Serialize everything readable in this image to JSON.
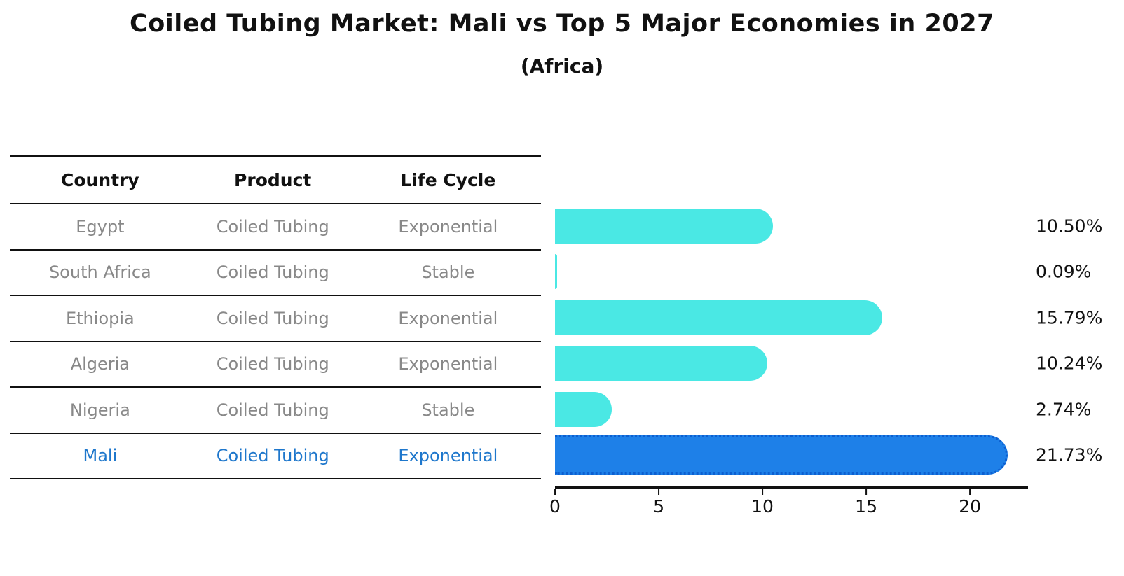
{
  "title": "Coiled Tubing Market: Mali vs Top 5 Major Economies in 2027",
  "subtitle": "(Africa)",
  "table": {
    "headers": [
      "Country",
      "Product",
      "Life Cycle"
    ],
    "rows": [
      {
        "country": "Egypt",
        "product": "Coiled Tubing",
        "life_cycle": "Exponential"
      },
      {
        "country": "South Africa",
        "product": "Coiled Tubing",
        "life_cycle": "Stable"
      },
      {
        "country": "Ethiopia",
        "product": "Coiled Tubing",
        "life_cycle": "Exponential"
      },
      {
        "country": "Algeria",
        "product": "Coiled Tubing",
        "life_cycle": "Exponential"
      },
      {
        "country": "Nigeria",
        "product": "Coiled Tubing",
        "life_cycle": "Stable"
      },
      {
        "country": "Mali",
        "product": "Coiled Tubing",
        "life_cycle": "Exponential"
      }
    ],
    "highlight_row": "Mali"
  },
  "chart_data": {
    "type": "bar",
    "orientation": "horizontal",
    "title": "Coiled Tubing Market: Mali vs Top 5 Major Economies in 2027",
    "subtitle": "(Africa)",
    "categories": [
      "Egypt",
      "South Africa",
      "Ethiopia",
      "Algeria",
      "Nigeria",
      "Mali"
    ],
    "values": [
      10.5,
      0.09,
      15.79,
      10.24,
      2.74,
      21.73
    ],
    "value_labels": [
      "10.50%",
      "0.09%",
      "15.79%",
      "10.24%",
      "2.74%",
      "21.73%"
    ],
    "xlabel": "",
    "ylabel": "",
    "xlim": [
      0,
      22.8
    ],
    "xticks": [
      0,
      5,
      10,
      15,
      20
    ],
    "grid": false,
    "legend": false,
    "bar_color": "#4AE8E4",
    "highlight_category": "Mali",
    "highlight_color": "#1E80E8",
    "highlight_border_color": "#0D5FD0"
  },
  "colors": {
    "background": "#FFFFFF",
    "text_primary": "#111111",
    "text_muted": "#888888",
    "highlight_text": "#1E77CC"
  }
}
